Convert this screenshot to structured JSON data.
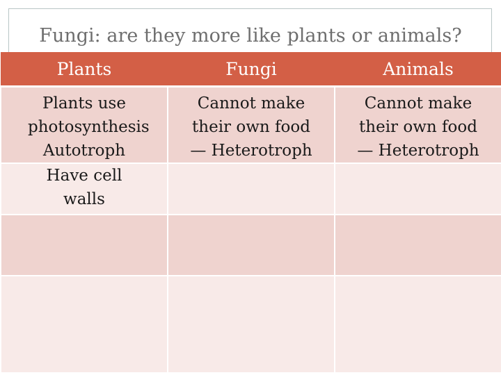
{
  "slide": {
    "title": "Fungi: are they more like plants or animals?"
  },
  "table": {
    "headers": [
      "Plants",
      "Fungi",
      "Animals"
    ],
    "rows": [
      [
        "Plants use photosynthesis Autotroph",
        "Cannot make their own food— Heterotroph",
        "Cannot make their own food— Heterotroph"
      ],
      [
        "Have cell walls",
        "",
        ""
      ],
      [
        "",
        "",
        ""
      ],
      [
        "",
        "",
        ""
      ]
    ],
    "colors": {
      "header_bg": "#d35f46",
      "header_text": "#ffffff",
      "row_dark": "#efd3cf",
      "row_light": "#f8eae8",
      "title_text": "#6e6e6e"
    }
  }
}
